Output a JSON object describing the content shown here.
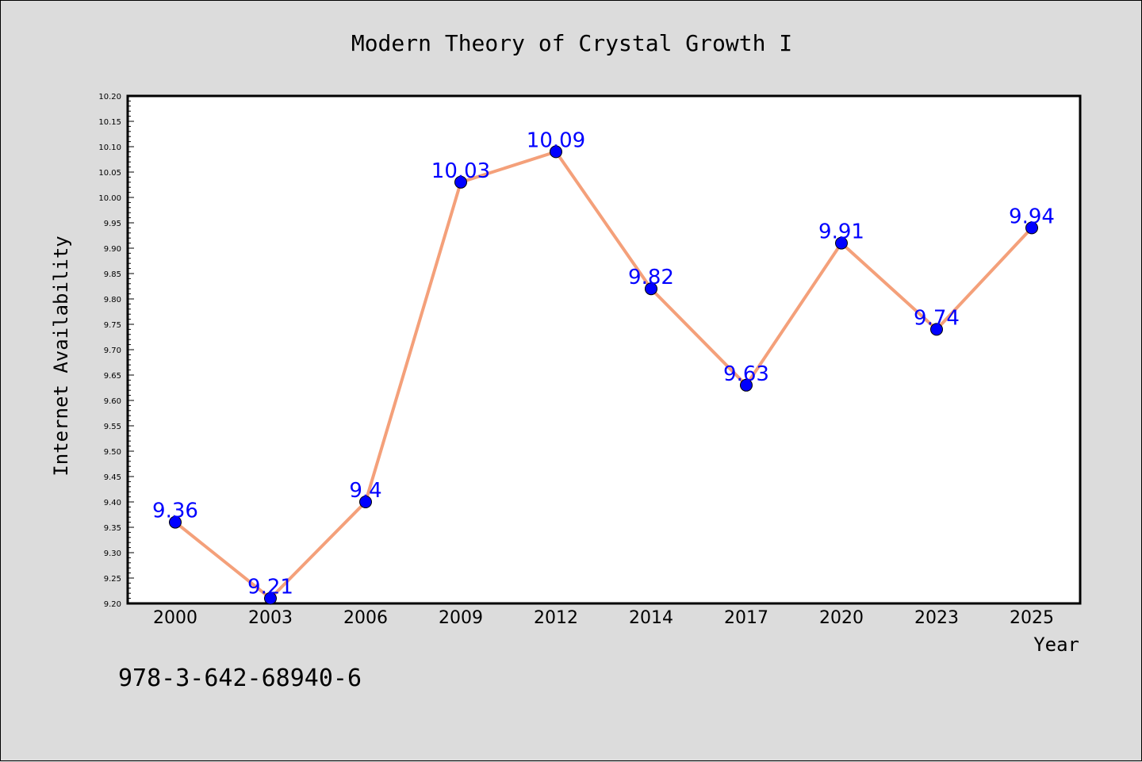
{
  "chart_data": {
    "type": "line",
    "title": "Modern Theory of Crystal Growth I",
    "xlabel": "Year",
    "ylabel": "Internet Availability",
    "categories": [
      "2000",
      "2003",
      "2006",
      "2009",
      "2012",
      "2014",
      "2017",
      "2020",
      "2023",
      "2025"
    ],
    "series": [
      {
        "values": [
          9.36,
          9.21,
          9.4,
          10.03,
          10.09,
          9.82,
          9.63,
          9.91,
          9.74,
          9.94
        ],
        "line_color": "#f4a07a",
        "marker_color": "#0000ff"
      }
    ],
    "data_labels": [
      "9.36",
      "9.21",
      "9.4",
      "10.03",
      "10.09",
      "9.82",
      "9.63",
      "9.91",
      "9.74",
      "9.94"
    ],
    "ylim": [
      9.2,
      10.2
    ],
    "yticks": [
      "9.20",
      "9.25",
      "9.30",
      "9.35",
      "9.40",
      "9.45",
      "9.50",
      "9.55",
      "9.60",
      "9.65",
      "9.70",
      "9.75",
      "9.80",
      "9.85",
      "9.90",
      "9.95",
      "10.00",
      "10.05",
      "10.10",
      "10.15",
      "10.20"
    ],
    "grid": false,
    "plot_background": "#ffffff",
    "figure_background": "#dcdcdc",
    "data_label_color": "#0000ff"
  },
  "footer": {
    "isbn": "978-3-642-68940-6"
  }
}
